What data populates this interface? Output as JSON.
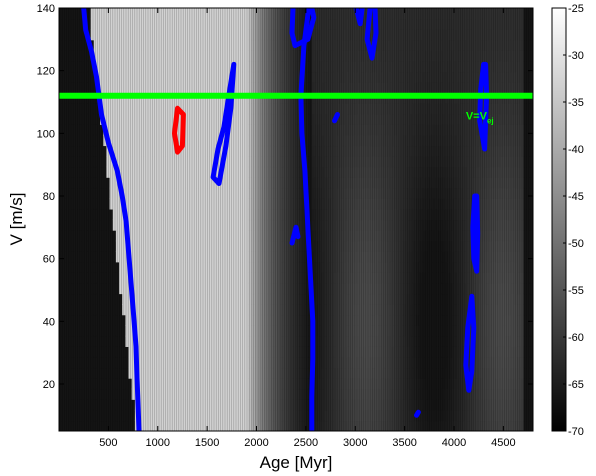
{
  "chart_data": {
    "type": "heatmap",
    "xlabel": "Age [Myr]",
    "ylabel": "V [m/s]",
    "xlim": [
      0,
      4800
    ],
    "ylim": [
      5,
      140
    ],
    "xticks": [
      500,
      1000,
      1500,
      2000,
      2500,
      3000,
      3500,
      4000,
      4500
    ],
    "yticks": [
      20,
      40,
      60,
      80,
      100,
      120,
      140
    ],
    "colorbar": {
      "range": [
        -70,
        -25
      ],
      "ticks": [
        -25,
        -30,
        -35,
        -40,
        -45,
        -50,
        -55,
        -60,
        -65,
        -70
      ],
      "colormap": "gray"
    },
    "reference_line": {
      "y": 112,
      "color": "#00ff00",
      "label_main": "V=V",
      "label_sub": "ej"
    },
    "contours": [
      {
        "color": "#0000ff",
        "points": [
          [
            250,
            140
          ],
          [
            270,
            133
          ],
          [
            330,
            126
          ],
          [
            380,
            118
          ],
          [
            430,
            106
          ],
          [
            500,
            97
          ],
          [
            590,
            88
          ],
          [
            640,
            80
          ],
          [
            680,
            72
          ],
          [
            700,
            64
          ],
          [
            720,
            56
          ],
          [
            740,
            48
          ],
          [
            760,
            40
          ],
          [
            780,
            32
          ],
          [
            790,
            22
          ],
          [
            800,
            14
          ],
          [
            810,
            5
          ]
        ]
      },
      {
        "color": "#0000ff",
        "points": [
          [
            2530,
            140
          ],
          [
            2480,
            128
          ],
          [
            2450,
            112
          ],
          [
            2460,
            100
          ],
          [
            2490,
            88
          ],
          [
            2510,
            76
          ],
          [
            2530,
            64
          ],
          [
            2550,
            52
          ],
          [
            2570,
            40
          ],
          [
            2570,
            28
          ],
          [
            2560,
            16
          ],
          [
            2560,
            5
          ]
        ]
      },
      {
        "color": "#0000ff",
        "points": [
          [
            1560,
            86
          ],
          [
            1610,
            95
          ],
          [
            1670,
            102
          ],
          [
            1720,
            112
          ],
          [
            1770,
            122
          ],
          [
            1740,
            108
          ],
          [
            1690,
            96
          ],
          [
            1620,
            84
          ],
          [
            1560,
            86
          ]
        ]
      },
      {
        "color": "#0000ff",
        "points": [
          [
            2370,
            140
          ],
          [
            2360,
            132
          ],
          [
            2390,
            128
          ],
          [
            2520,
            130
          ],
          [
            2580,
            137
          ],
          [
            2560,
            140
          ]
        ]
      },
      {
        "color": "#0000ff",
        "points": [
          [
            3150,
            140
          ],
          [
            3120,
            130
          ],
          [
            3170,
            124
          ],
          [
            3210,
            132
          ],
          [
            3200,
            140
          ]
        ]
      },
      {
        "color": "#0000ff",
        "points": [
          [
            3010,
            140
          ],
          [
            3050,
            135
          ],
          [
            3070,
            140
          ]
        ]
      },
      {
        "color": "#0000ff",
        "points": [
          [
            4300,
            122
          ],
          [
            4270,
            114
          ],
          [
            4260,
            104
          ],
          [
            4310,
            95
          ],
          [
            4330,
            112
          ],
          [
            4320,
            122
          ],
          [
            4300,
            122
          ]
        ]
      },
      {
        "color": "#0000ff",
        "points": [
          [
            4210,
            80
          ],
          [
            4190,
            70
          ],
          [
            4200,
            60
          ],
          [
            4230,
            56
          ],
          [
            4240,
            68
          ],
          [
            4230,
            80
          ],
          [
            4210,
            80
          ]
        ]
      },
      {
        "color": "#0000ff",
        "points": [
          [
            4180,
            48
          ],
          [
            4140,
            38
          ],
          [
            4120,
            26
          ],
          [
            4150,
            18
          ],
          [
            4180,
            24
          ],
          [
            4200,
            38
          ],
          [
            4180,
            48
          ]
        ]
      },
      {
        "color": "#0000ff",
        "points": [
          [
            2360,
            65
          ],
          [
            2400,
            70
          ],
          [
            2420,
            67
          ]
        ]
      },
      {
        "color": "#0000ff",
        "points": [
          [
            2790,
            104
          ],
          [
            2820,
            106
          ]
        ]
      },
      {
        "color": "#0000ff",
        "points": [
          [
            3620,
            10
          ],
          [
            3640,
            11
          ]
        ]
      },
      {
        "color": "#ff0000",
        "points": [
          [
            1200,
            108
          ],
          [
            1170,
            100
          ],
          [
            1200,
            94
          ],
          [
            1250,
            96
          ],
          [
            1260,
            106
          ],
          [
            1200,
            108
          ]
        ]
      }
    ]
  }
}
